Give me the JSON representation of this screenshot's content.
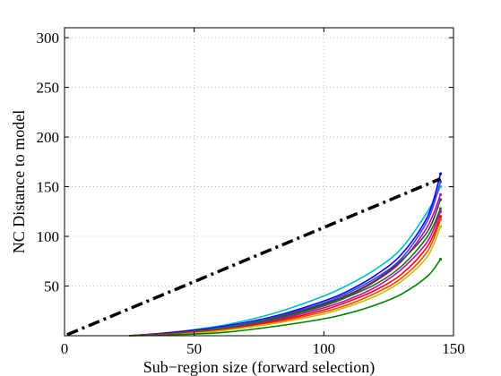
{
  "chart_data": {
    "type": "line",
    "title": "",
    "xlabel": "Sub−region size (forward selection)",
    "ylabel": "NC Distance to model",
    "xlim": [
      0,
      150
    ],
    "ylim": [
      0,
      310
    ],
    "xticks": [
      0,
      50,
      100,
      150
    ],
    "yticks": [
      50,
      100,
      150,
      200,
      250,
      300
    ],
    "grid": true,
    "reference_line": {
      "style": "dash-dot",
      "color": "#000000",
      "x": [
        1,
        145
      ],
      "y": [
        1,
        158
      ]
    },
    "series": [
      {
        "color": "#00bfbf",
        "x": [
          25,
          40,
          60,
          80,
          100,
          110,
          120,
          130,
          140,
          145
        ],
        "y": [
          0,
          3,
          10,
          22,
          40,
          52,
          67,
          88,
          125,
          150
        ]
      },
      {
        "color": "#0000ff",
        "x": [
          25,
          40,
          60,
          80,
          100,
          110,
          120,
          130,
          140,
          145
        ],
        "y": [
          0,
          3,
          9,
          19,
          35,
          46,
          61,
          82,
          120,
          163
        ]
      },
      {
        "color": "#4040ff",
        "x": [
          25,
          40,
          60,
          80,
          100,
          110,
          120,
          130,
          140,
          145
        ],
        "y": [
          0,
          2,
          8,
          18,
          33,
          44,
          58,
          78,
          116,
          155
        ]
      },
      {
        "color": "#bf00bf",
        "x": [
          25,
          40,
          60,
          80,
          100,
          110,
          120,
          130,
          140,
          145
        ],
        "y": [
          0,
          2,
          7,
          16,
          31,
          41,
          55,
          75,
          110,
          142
        ]
      },
      {
        "color": "#404040",
        "x": [
          25,
          40,
          60,
          80,
          100,
          110,
          120,
          130,
          140,
          145
        ],
        "y": [
          0,
          2,
          7,
          17,
          32,
          42,
          56,
          76,
          105,
          137
        ]
      },
      {
        "color": "#008000",
        "x": [
          25,
          40,
          60,
          80,
          100,
          110,
          120,
          130,
          140,
          145
        ],
        "y": [
          0,
          2,
          7,
          16,
          30,
          40,
          52,
          70,
          100,
          128
        ]
      },
      {
        "color": "#bf00bf",
        "x": [
          25,
          40,
          60,
          80,
          100,
          110,
          120,
          130,
          140,
          145
        ],
        "y": [
          0,
          2,
          6,
          15,
          28,
          37,
          49,
          67,
          95,
          125
        ]
      },
      {
        "color": "#ff0000",
        "x": [
          25,
          40,
          60,
          80,
          100,
          110,
          120,
          130,
          140,
          145
        ],
        "y": [
          0,
          2,
          6,
          14,
          26,
          35,
          46,
          62,
          90,
          120
        ]
      },
      {
        "color": "#ff4000",
        "x": [
          25,
          40,
          60,
          80,
          100,
          110,
          120,
          130,
          140,
          145
        ],
        "y": [
          0,
          1,
          5,
          13,
          24,
          32,
          43,
          58,
          85,
          117
        ]
      },
      {
        "color": "#bfbf00",
        "x": [
          25,
          40,
          60,
          80,
          100,
          110,
          120,
          130,
          140,
          145
        ],
        "y": [
          0,
          1,
          5,
          12,
          22,
          30,
          40,
          55,
          80,
          110
        ]
      },
      {
        "color": "#008000",
        "x": [
          25,
          40,
          60,
          80,
          100,
          110,
          120,
          130,
          140,
          145
        ],
        "y": [
          0,
          1,
          3,
          9,
          17,
          23,
          31,
          42,
          60,
          77
        ]
      }
    ]
  }
}
